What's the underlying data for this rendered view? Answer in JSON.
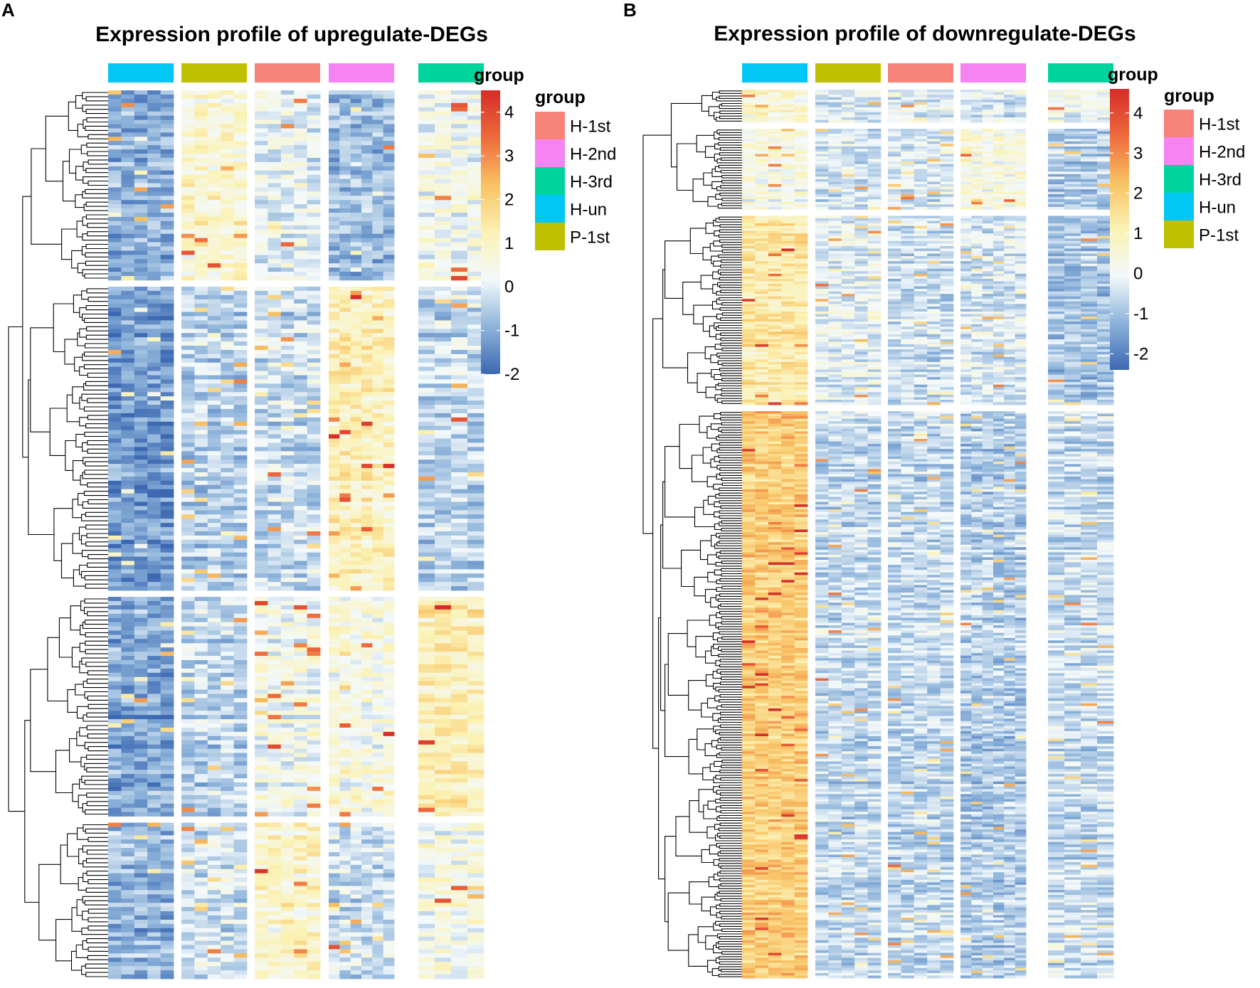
{
  "chart_data": [
    {
      "panel": "A",
      "type": "heatmap",
      "title": "Expression profile of upregulate-DEGs",
      "annotation_label": "group",
      "column_groups": [
        "H-un",
        "P-1st",
        "H-1st",
        "H-2nd",
        "H-3rd"
      ],
      "samples_per_group": 5,
      "row_cluster_sizes": [
        45,
        72,
        52,
        37
      ],
      "colorbar": {
        "min": -2,
        "max": 4.5,
        "ticks": [
          "4",
          "3",
          "2",
          "1",
          "0",
          "-1",
          "-2"
        ]
      },
      "legend_title": "group",
      "legend": [
        "H-1st",
        "H-2nd",
        "H-3rd",
        "H-un",
        "P-1st"
      ],
      "cluster_profiles": [
        [
          -0.9,
          0.9,
          0.1,
          -0.7,
          0.4
        ],
        [
          -1.3,
          -0.5,
          -0.3,
          1.1,
          -0.4
        ],
        [
          -1.1,
          -0.4,
          0.3,
          0.5,
          1.2
        ],
        [
          -0.9,
          -0.2,
          0.9,
          -0.3,
          0.4
        ]
      ]
    },
    {
      "panel": "B",
      "type": "heatmap",
      "title": "Expression profile of downregulate-DEGs",
      "annotation_label": "group",
      "column_groups": [
        "H-un",
        "P-1st",
        "H-1st",
        "H-2nd",
        "H-3rd"
      ],
      "samples_per_group": 5,
      "row_cluster_sizes": [
        13,
        32,
        75,
        225
      ],
      "colorbar": {
        "min": -2.4,
        "max": 4.6,
        "ticks": [
          "4",
          "3",
          "2",
          "1",
          "0",
          "-1",
          "-2"
        ]
      },
      "legend_title": "group",
      "legend": [
        "H-1st",
        "H-2nd",
        "H-3rd",
        "H-un",
        "P-1st"
      ],
      "cluster_profiles": [
        [
          0.6,
          -0.4,
          -0.3,
          -0.4,
          0.0
        ],
        [
          0.3,
          -0.4,
          -0.3,
          0.4,
          -0.8
        ],
        [
          1.3,
          -0.2,
          -0.5,
          -0.3,
          -0.9
        ],
        [
          2.0,
          -0.6,
          -0.6,
          -0.8,
          -0.5
        ]
      ]
    }
  ],
  "colors": {
    "groups": {
      "H-1st": "#F8837A",
      "H-2nd": "#F683F2",
      "H-3rd": "#00D49D",
      "H-un": "#00C7F3",
      "P-1st": "#BEC001"
    },
    "scale": [
      "#3C68B2",
      "#8DB3DA",
      "#F3F9FB",
      "#FBF2B4",
      "#F8C264",
      "#EE6A3C",
      "#D52D28"
    ]
  },
  "panel_labels": [
    "A",
    "B"
  ]
}
